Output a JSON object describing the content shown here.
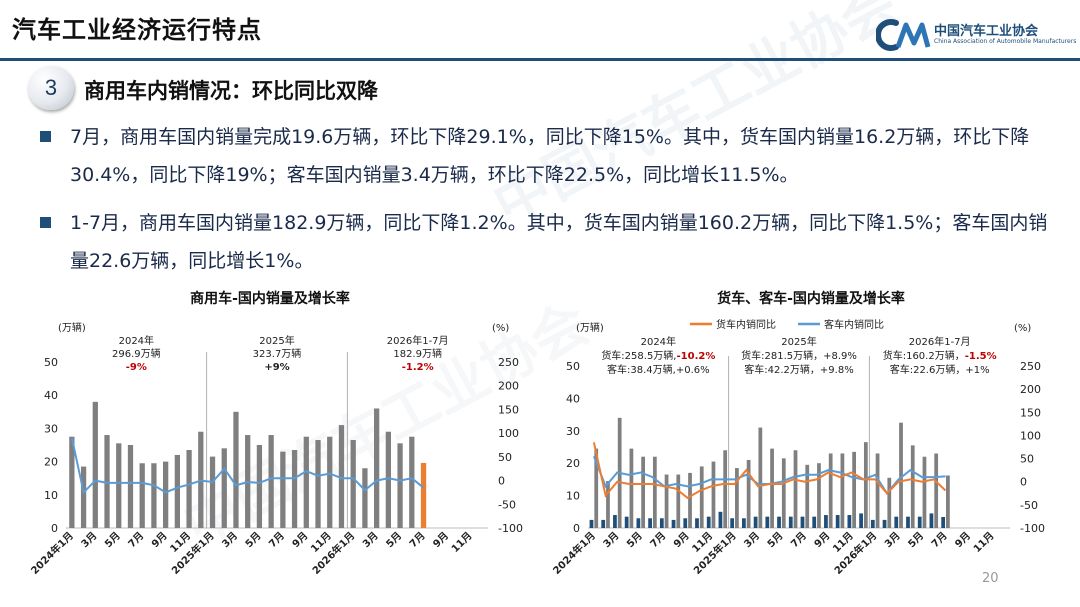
{
  "header": {
    "title": "汽车工业经济运行特点"
  },
  "logo": {
    "cn": "中国汽车工业协会",
    "en": "China Association of Automobile Manufacturers"
  },
  "section": {
    "number": "3",
    "title": "商用车内销情况：环比同比双降"
  },
  "bullets": [
    "7月，商用车国内销量完成19.6万辆，环比下降29.1%，同比下降15%。其中，货车国内销量16.2万辆，环比下降30.4%，同比下降19%；客车国内销量3.4万辆，环比下降22.5%，同比增长11.5%。",
    "1-7月，商用车国内销量182.9万辆，同比下降1.2%。其中，货车国内销量160.2万辆，同比下降1.5%；客车国内销量22.6万辆，同比增长1%。"
  ],
  "watermark": "中国汽车工业协会",
  "page_number": "20",
  "chart_data": [
    {
      "type": "bar",
      "title": "商用车-国内销量及增长率",
      "y_left_unit": "(万辆)",
      "y_right_unit": "(%)",
      "ylim": [
        0,
        50
      ],
      "y2lim": [
        -100,
        250
      ],
      "y_ticks": [
        0,
        10,
        20,
        30,
        40,
        50
      ],
      "y2_ticks": [
        -100,
        -50,
        0,
        50,
        100,
        150,
        200,
        250
      ],
      "x_tick_labels": [
        "2024年1月",
        "3月",
        "5月",
        "7月",
        "9月",
        "11月",
        "2025年1月",
        "3月",
        "5月",
        "7月",
        "9月",
        "11月",
        "2026年1月",
        "3月",
        "5月",
        "7月",
        "9月",
        "11月"
      ],
      "colors": {
        "bars": "#7f7f7f",
        "highlight": "#ed7d31",
        "line": "#5b9bd5",
        "highlight_text": "#c00000"
      },
      "annotations": [
        {
          "year": "2024年",
          "volume": "296.9万辆",
          "growth": "-9%"
        },
        {
          "year": "2025年",
          "volume": "323.7万辆",
          "growth": "+9%"
        },
        {
          "year": "2026年1-7月",
          "volume": "182.9万辆",
          "growth": "-1.2%"
        }
      ],
      "series": [
        {
          "name": "商用车国内销量",
          "axis": "left",
          "values": [
            27.5,
            18.5,
            38,
            28,
            25.5,
            25,
            19.5,
            19.5,
            20,
            22,
            23.5,
            29,
            21.5,
            24,
            35,
            28,
            25,
            28,
            23,
            23.5,
            27.5,
            26.5,
            27.5,
            31,
            26.5,
            18,
            36,
            29,
            25.5,
            27.5,
            19.6,
            null,
            null,
            null,
            null,
            null
          ]
        },
        {
          "name": "商用车国内销量同比",
          "axis": "right",
          "values": [
            90,
            -25,
            0,
            -5,
            -5,
            -5,
            -5,
            -10,
            -25,
            -15,
            -8,
            0,
            -3,
            25,
            -10,
            -3,
            -5,
            5,
            5,
            5,
            20,
            10,
            15,
            5,
            5,
            -20,
            0,
            5,
            0,
            5,
            -15,
            null,
            null,
            null,
            null,
            null
          ]
        }
      ]
    },
    {
      "type": "bar",
      "title": "货车、客车-国内销量及增长率",
      "y_left_unit": "(万辆)",
      "y_right_unit": "(%)",
      "ylim": [
        0,
        50
      ],
      "y2lim": [
        -100,
        250
      ],
      "y_ticks": [
        0,
        10,
        20,
        30,
        40,
        50
      ],
      "y2_ticks": [
        -100,
        -50,
        0,
        50,
        100,
        150,
        200,
        250
      ],
      "x_tick_labels": [
        "2024年1月",
        "3月",
        "5月",
        "7月",
        "9月",
        "11月",
        "2025年1月",
        "3月",
        "5月",
        "7月",
        "9月",
        "11月",
        "2026年1月",
        "3月",
        "5月",
        "7月",
        "9月",
        "11月"
      ],
      "legend": [
        "货车内销同比",
        "客车内销同比"
      ],
      "colors": {
        "truck_bars": "#7f7f7f",
        "bus_bars": "#1f4e79",
        "truck_line": "#ed7d31",
        "bus_line": "#5b9bd5",
        "highlight_text": "#c00000"
      },
      "annotations": [
        {
          "year": "2024年",
          "truck": "货车:258.5万辆,",
          "truck_growth": "-10.2%",
          "bus": "客车:38.4万辆,+0.6%"
        },
        {
          "year": "2025年",
          "truck": "货车:281.5万辆，+8.9%",
          "bus": "客车:42.2万辆，+9.8%"
        },
        {
          "year": "2026年1-7月",
          "truck": "货车:160.2万辆，",
          "truck_growth": "-1.5%",
          "bus": "客车:22.6万辆，+1%"
        }
      ],
      "series": [
        {
          "name": "货车国内销量",
          "axis": "left",
          "values": [
            24.5,
            14.5,
            34,
            24.5,
            22,
            22,
            16.5,
            16.5,
            17,
            19,
            20.5,
            24,
            18.5,
            21,
            31,
            24.5,
            21.5,
            24,
            19.5,
            20,
            23,
            23,
            23.5,
            26.5,
            23,
            15.5,
            32.5,
            25.5,
            22,
            23,
            16.2,
            null,
            null,
            null,
            null,
            null
          ]
        },
        {
          "name": "客车国内销量",
          "axis": "left",
          "values": [
            2.5,
            2.5,
            4,
            3.5,
            3,
            3,
            3,
            2.5,
            3,
            3,
            3.5,
            5,
            3,
            3,
            3.5,
            3.5,
            3.5,
            3.5,
            3.5,
            3.5,
            4,
            4,
            4,
            4.5,
            2.5,
            2.5,
            3.5,
            3.5,
            3.5,
            4.5,
            3.4,
            null,
            null,
            null,
            null,
            null
          ]
        },
        {
          "name": "货车内销同比",
          "axis": "right",
          "values": [
            85,
            -30,
            0,
            -5,
            -5,
            -5,
            -10,
            -15,
            -35,
            -20,
            -10,
            -5,
            -5,
            25,
            -10,
            -5,
            -5,
            5,
            0,
            5,
            20,
            10,
            20,
            5,
            5,
            -25,
            0,
            5,
            0,
            5,
            -19,
            null,
            null,
            null,
            null,
            null
          ]
        },
        {
          "name": "客车内销同比",
          "axis": "right",
          "values": [
            55,
            -10,
            20,
            15,
            20,
            10,
            -10,
            -5,
            -10,
            -5,
            5,
            5,
            5,
            15,
            -5,
            -5,
            0,
            10,
            15,
            15,
            25,
            20,
            10,
            5,
            15,
            -25,
            5,
            25,
            10,
            10,
            11.5,
            null,
            null,
            null,
            null,
            null
          ]
        }
      ]
    }
  ]
}
